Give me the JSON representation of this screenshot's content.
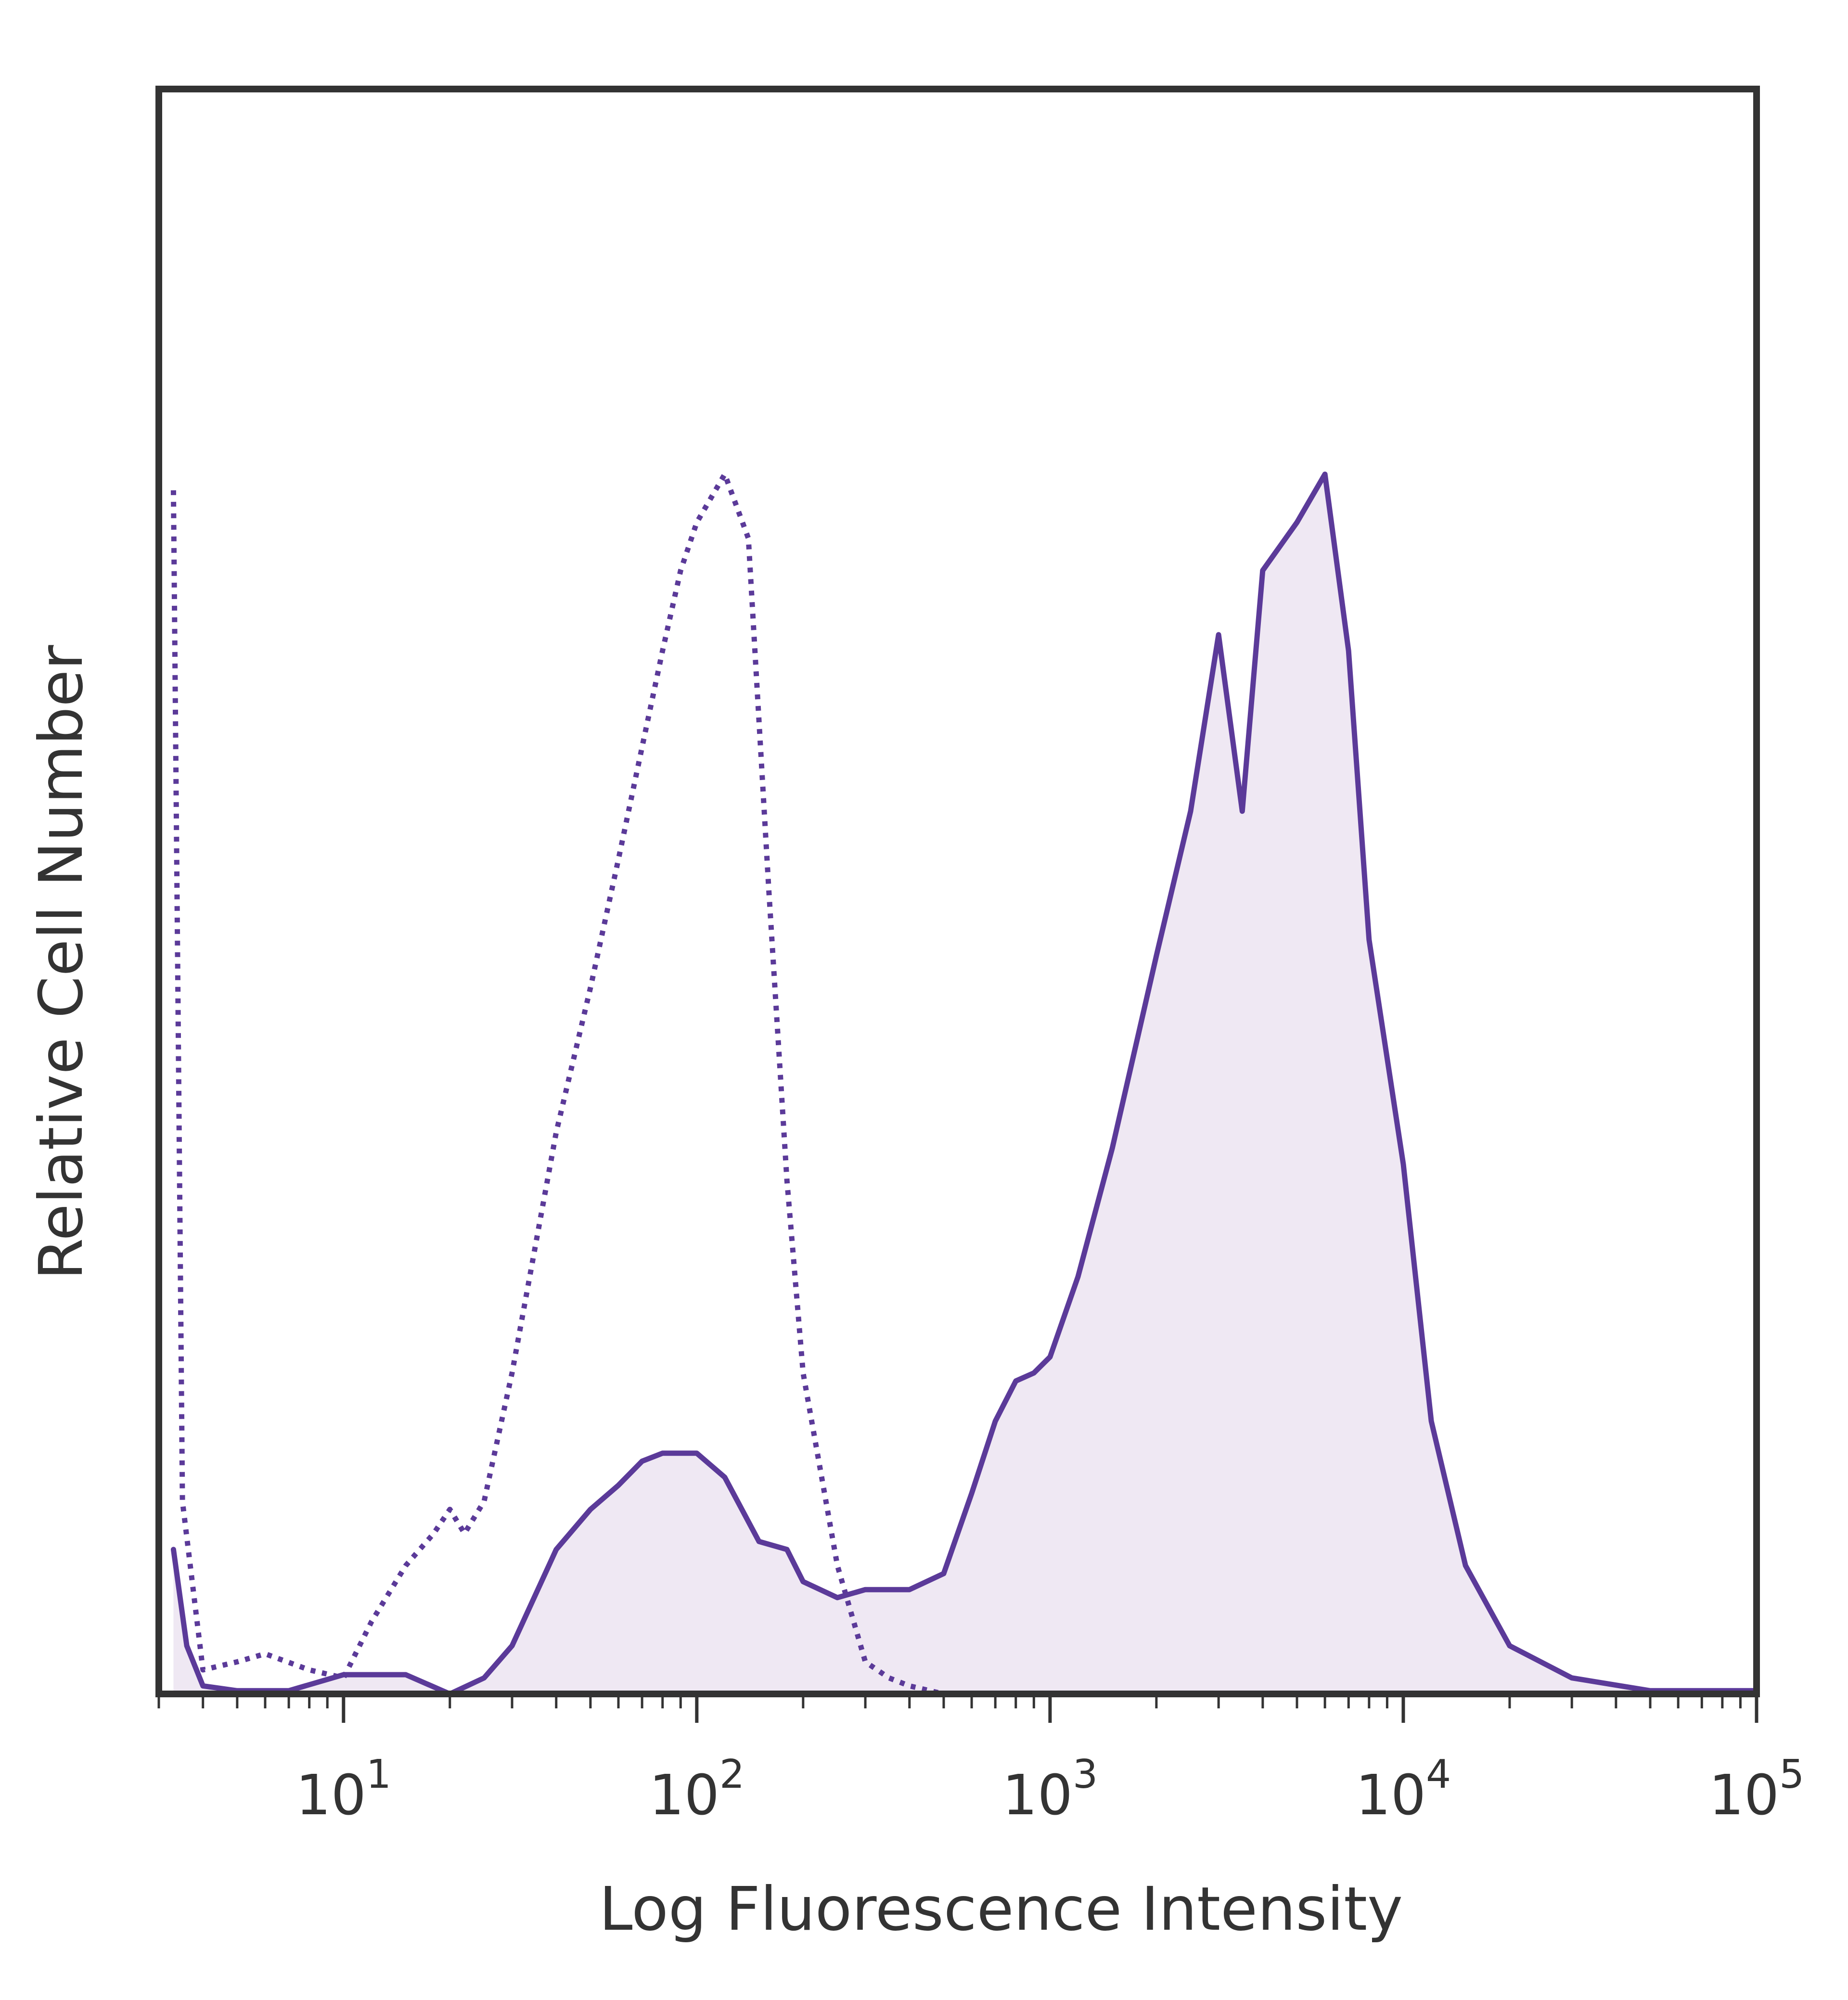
{
  "chart_data": {
    "type": "area",
    "xlabel": "Log Fluorescence Intensity",
    "ylabel": "Relative Cell Number",
    "xscale": "log",
    "xlim": [
      3,
      100000
    ],
    "ylim": [
      0,
      100
    ],
    "xticks": [
      {
        "value": 10,
        "base": "10",
        "exp": "1"
      },
      {
        "value": 100,
        "base": "10",
        "exp": "2"
      },
      {
        "value": 1000,
        "base": "10",
        "exp": "3"
      },
      {
        "value": 10000,
        "base": "10",
        "exp": "4"
      },
      {
        "value": 100000,
        "base": "10",
        "exp": "5"
      }
    ],
    "grid": false,
    "colors": {
      "line": "#5b3a99",
      "fill": "#efe8f3",
      "frame": "#333333"
    },
    "series": [
      {
        "style": "solid-filled",
        "x": [
          3.3,
          3.6,
          4,
          5,
          7,
          10,
          15,
          20,
          25,
          30,
          40,
          50,
          60,
          70,
          80,
          100,
          120,
          150,
          180,
          200,
          250,
          300,
          400,
          500,
          600,
          700,
          800,
          900,
          1000,
          1200,
          1500,
          2000,
          2500,
          3000,
          3500,
          4000,
          5000,
          6000,
          7000,
          8000,
          10000,
          12000,
          15000,
          20000,
          30000,
          50000,
          100000
        ],
        "y": [
          9,
          3,
          0.5,
          0.2,
          0.2,
          1.2,
          1.2,
          0,
          1,
          3,
          9,
          11.5,
          13,
          14.5,
          15,
          15,
          13.5,
          9.5,
          9,
          7,
          6,
          6.5,
          6.5,
          7.5,
          12.5,
          17,
          19.5,
          20,
          21,
          26,
          34,
          46,
          55,
          66,
          55,
          70,
          73,
          76,
          65,
          47,
          33,
          17,
          8,
          3,
          1,
          0.2,
          0.2
        ]
      },
      {
        "style": "dotted",
        "x": [
          3.3,
          3.5,
          4,
          5,
          6,
          8,
          10,
          12,
          15,
          18,
          20,
          22,
          25,
          30,
          40,
          50,
          60,
          70,
          80,
          90,
          100,
          120,
          140,
          160,
          180,
          200,
          250,
          300,
          350,
          400,
          500,
          1000,
          10000,
          100000
        ],
        "y": [
          75,
          12,
          1.5,
          2,
          2.5,
          1.5,
          1,
          4.5,
          8,
          10,
          11.5,
          10,
          12,
          20,
          35,
          44,
          52,
          59,
          65,
          70,
          73,
          76,
          72,
          50,
          32,
          20,
          8,
          2,
          1,
          0.5,
          0,
          0,
          0,
          0
        ]
      }
    ]
  }
}
